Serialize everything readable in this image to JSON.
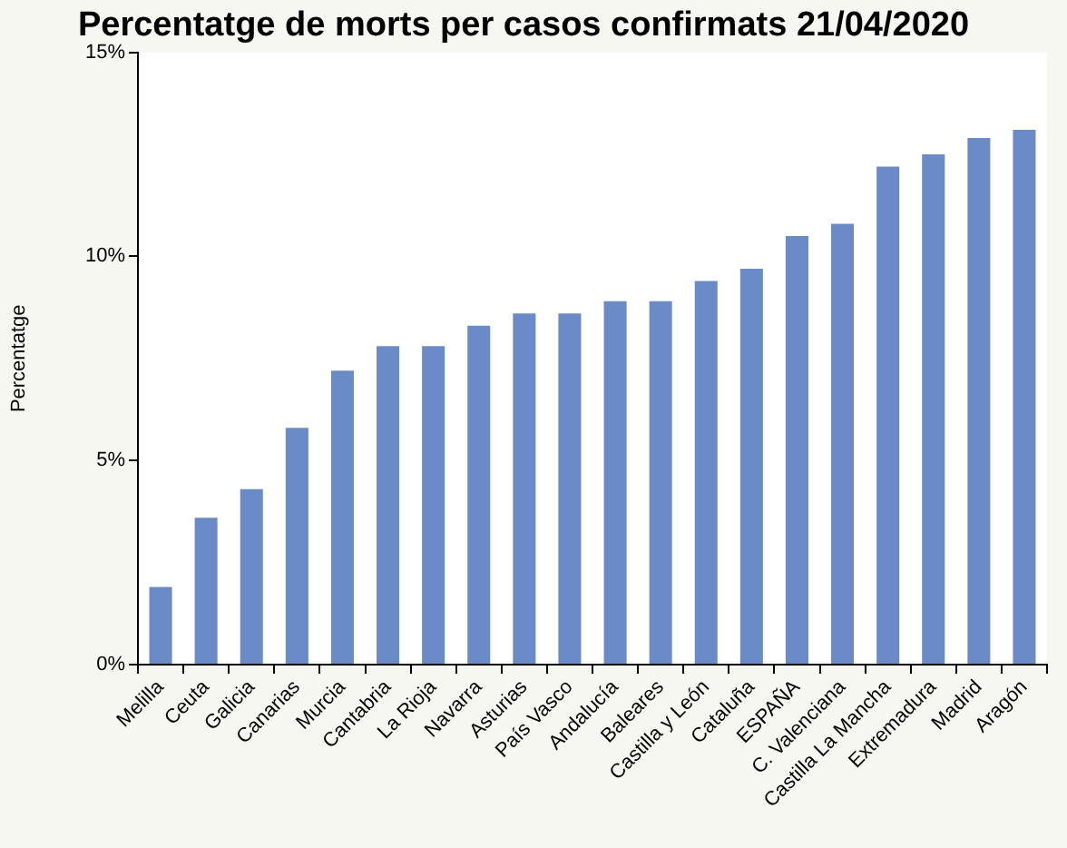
{
  "chart_data": {
    "type": "bar",
    "title": "Percentatge de morts per casos confirmats 21/04/2020",
    "ylabel": "Percentatge",
    "categories": [
      "Melilla",
      "Ceuta",
      "Galicia",
      "Canarias",
      "Murcia",
      "Cantabria",
      "La Rioja",
      "Navarra",
      "Asturias",
      "País Vasco",
      "Andalucía",
      "Baleares",
      "Castilla y León",
      "Cataluña",
      "ESPAÑA",
      "C. Valenciana",
      "Castilla La Mancha",
      "Extremadura",
      "Madrid",
      "Aragón"
    ],
    "values": [
      1.9,
      3.6,
      4.3,
      5.8,
      7.2,
      7.8,
      7.8,
      8.3,
      8.6,
      8.6,
      8.9,
      8.9,
      9.4,
      9.7,
      10.5,
      10.8,
      12.2,
      12.5,
      12.9,
      13.1
    ],
    "color": "#6a8bc8",
    "ylim": [
      0,
      15
    ],
    "yticks": [
      {
        "value": 0,
        "label": "0%"
      },
      {
        "value": 5,
        "label": "5%"
      },
      {
        "value": 10,
        "label": "10%"
      },
      {
        "value": 15,
        "label": "15%"
      }
    ]
  }
}
